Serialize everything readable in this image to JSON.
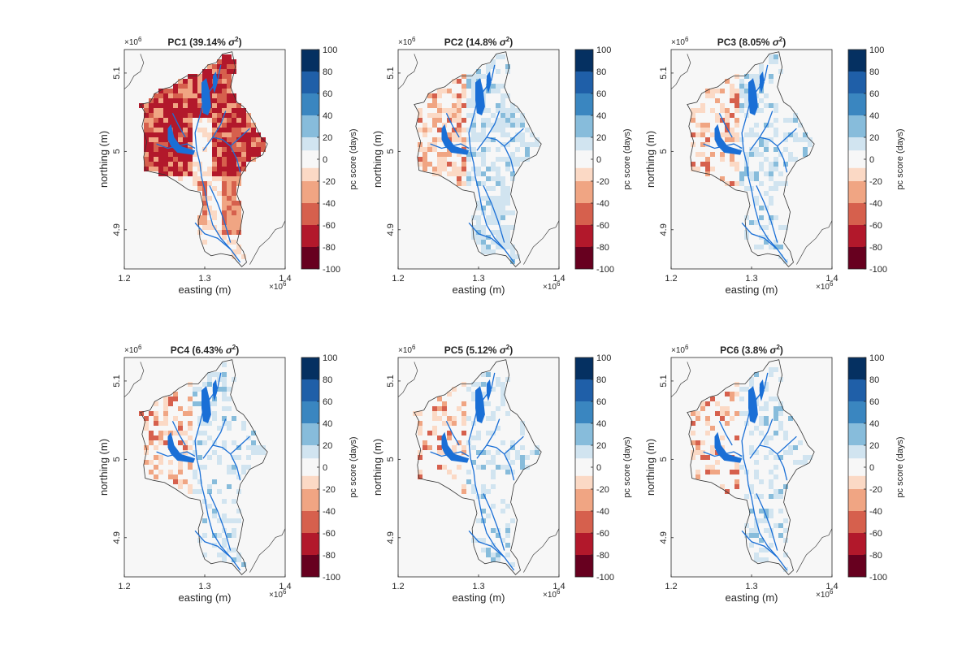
{
  "chart_data": {
    "type": "heatmap",
    "description_units": "map panels of principal component scores",
    "x_axis": {
      "label": "easting (m)",
      "ticks": [
        "1.2",
        "1.3",
        "1.4"
      ],
      "tick_values": [
        1.2,
        1.3,
        1.4
      ],
      "range": [
        1.2,
        1.4
      ],
      "exponent_base": "×10",
      "exponent_power": "6"
    },
    "y_axis": {
      "label": "northing (m)",
      "ticks": [
        "4.9",
        "5",
        "5.1"
      ],
      "tick_values": [
        4.9,
        5.0,
        5.1
      ],
      "range": [
        4.85,
        5.13
      ],
      "exponent_base": "×10",
      "exponent_power": "6"
    },
    "colorbar": {
      "label": "pc score (days)",
      "ticks": [
        "100",
        "80",
        "60",
        "40",
        "20",
        "0",
        "-20",
        "-40",
        "-60",
        "-80",
        "-100"
      ],
      "range": [
        -100,
        100
      ],
      "colors": [
        "#053061",
        "#1f5fa8",
        "#3a86c0",
        "#87bcdb",
        "#d1e4f0",
        "#f7f7f7",
        "#fbd9c5",
        "#f0a583",
        "#d6604d",
        "#b2182b",
        "#67001f"
      ]
    },
    "panels": [
      {
        "title_prefix": "PC1 (",
        "percent": "39.14%",
        "symbol": "σ",
        "power": "2",
        "close": ")",
        "variance_explained_percent": 39.14,
        "dominant_sign": "negative",
        "intensity": 0.85
      },
      {
        "title_prefix": "PC2 (",
        "percent": "14.8%",
        "symbol": "σ",
        "power": "2",
        "close": ")",
        "variance_explained_percent": 14.8,
        "dominant_sign": "mixed",
        "intensity": 0.45
      },
      {
        "title_prefix": "PC3 (",
        "percent": "8.05%",
        "symbol": "σ",
        "power": "2",
        "close": ")",
        "variance_explained_percent": 8.05,
        "dominant_sign": "mixed",
        "intensity": 0.3
      },
      {
        "title_prefix": "PC4 (",
        "percent": "6.43%",
        "symbol": "σ",
        "power": "2",
        "close": ")",
        "variance_explained_percent": 6.43,
        "dominant_sign": "mixed",
        "intensity": 0.3
      },
      {
        "title_prefix": "PC5 (",
        "percent": "5.12%",
        "symbol": "σ",
        "power": "2",
        "close": ")",
        "variance_explained_percent": 5.12,
        "dominant_sign": "mixed",
        "intensity": 0.25
      },
      {
        "title_prefix": "PC6 (",
        "percent": "3.8%",
        "symbol": "σ",
        "power": "2",
        "close": ")",
        "variance_explained_percent": 3.8,
        "dominant_sign": "mixed",
        "intensity": 0.25
      }
    ],
    "colors": {
      "lakes_rivers": "#1a6fd6",
      "background": "#f7f7f7",
      "border": "#333333"
    }
  }
}
